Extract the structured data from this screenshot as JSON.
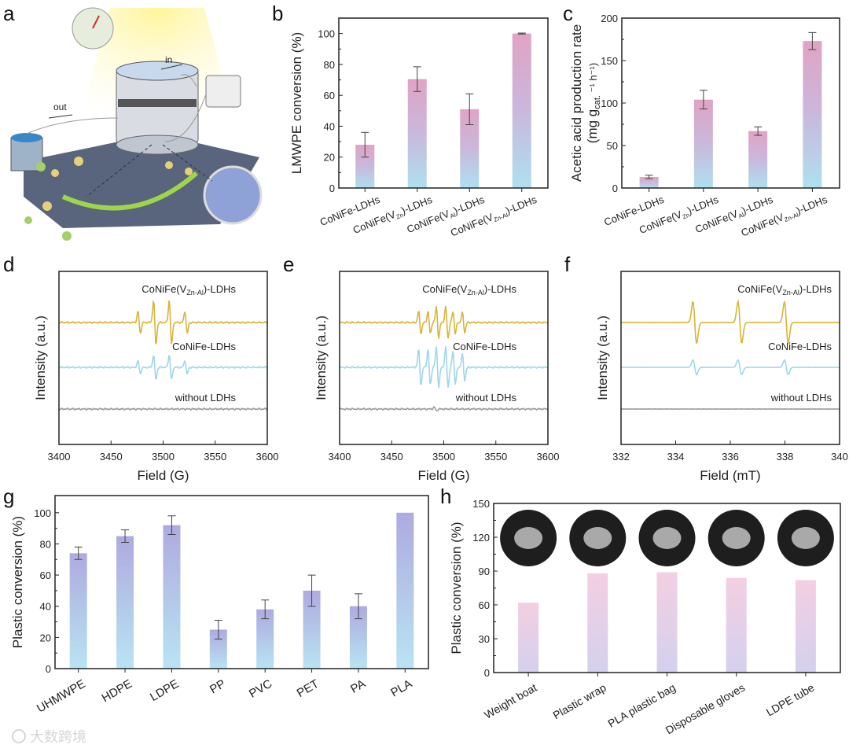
{
  "panel_labels": [
    "a",
    "b",
    "c",
    "d",
    "e",
    "f",
    "g",
    "h"
  ],
  "panel_a": {
    "in_label": "in",
    "out_label": "out"
  },
  "watermark": "大数跨境",
  "colors": {
    "pink": "#e3a6c6",
    "blue": "#aee0f0",
    "lavender": "#b7b6e6",
    "gold": "#d8b43a",
    "cyan": "#9fd6e8",
    "gray": "#9a9a9a"
  },
  "chart_data": [
    {
      "id": "b",
      "type": "bar",
      "title": "",
      "ylabel": "LMWPE conversion  (%)",
      "xlabel": "",
      "categories": [
        "CoNiFe-LDHs",
        "CoNiFe(V₂ₙ)-LDHs",
        "CoNiFe(Vₐₗ)-LDHs",
        "CoNiFe(V₂ₙ₋ₐₗ)-LDHs"
      ],
      "category_labels": [
        [
          "CoNiFe-LDHs"
        ],
        [
          "CoNiFe(V",
          "Zn",
          ")-LDHs"
        ],
        [
          "CoNiFe(V",
          "Al",
          ")-LDHs"
        ],
        [
          "CoNiFe(V",
          "Zn-Al",
          ")-LDHs"
        ]
      ],
      "values": [
        28,
        70.5,
        51,
        100
      ],
      "errors": [
        8,
        8,
        10,
        0.3
      ],
      "ylim": [
        0,
        110
      ],
      "yticks": [
        0,
        20,
        40,
        60,
        80,
        100
      ],
      "gradient": "pink-blue"
    },
    {
      "id": "c",
      "type": "bar",
      "ylabel": "Acetic acid production rate",
      "ylabel2": "(mg g",
      "ylabel2_sub": "cat.",
      "ylabel2_rest": "⁻¹ h⁻¹)",
      "category_labels": [
        [
          "CoNiFe-LDHs"
        ],
        [
          "CoNiFe(V",
          "Zn",
          ")-LDHs"
        ],
        [
          "CoNiFe(V",
          "Al",
          ")-LDHs"
        ],
        [
          "CoNiFe(V",
          "Zn-Al",
          ")-LDHs"
        ]
      ],
      "values": [
        13,
        104,
        67,
        173
      ],
      "errors": [
        2,
        11,
        5,
        10
      ],
      "ylim": [
        0,
        200
      ],
      "yticks": [
        0,
        50,
        100,
        150,
        200
      ],
      "gradient": "pink-blue"
    },
    {
      "id": "d",
      "type": "line",
      "xlabel": "Field (G)",
      "ylabel": "Intensity (a.u.)",
      "xlim": [
        3400,
        3600
      ],
      "xticks": [
        3400,
        3450,
        3500,
        3550,
        3600
      ],
      "series": [
        {
          "name": "CoNiFe(V",
          "sub": "Zn-Al",
          "rest": ")-LDHs",
          "color": "gold",
          "peaks": [
            3477,
            3492,
            3507,
            3522
          ],
          "amp": [
            0.5,
            1,
            1,
            0.5
          ]
        },
        {
          "name": "CoNiFe-LDHs",
          "color": "cyan",
          "peaks": [
            3477,
            3492,
            3507,
            3522
          ],
          "amp": [
            0.3,
            0.55,
            0.55,
            0.3
          ]
        },
        {
          "name": "without LDHs",
          "color": "gray",
          "peaks": [],
          "amp": []
        }
      ]
    },
    {
      "id": "e",
      "type": "line",
      "xlabel": "Field (G)",
      "ylabel": "Intensity (a.u.)",
      "xlim": [
        3400,
        3600
      ],
      "xticks": [
        3400,
        3450,
        3500,
        3550,
        3600
      ],
      "series": [
        {
          "name": "CoNiFe(V",
          "sub": "Zn-Al",
          "rest": ")-LDHs",
          "color": "gold",
          "peaks": [
            3477,
            3486,
            3494,
            3503,
            3510,
            3519
          ],
          "amp": [
            0.5,
            0.5,
            0.7,
            0.7,
            0.5,
            0.45
          ]
        },
        {
          "name": "CoNiFe-LDHs",
          "color": "cyan",
          "peaks": [
            3477,
            3486,
            3494,
            3503,
            3510,
            3519
          ],
          "amp": [
            0.8,
            0.8,
            0.9,
            0.9,
            0.75,
            0.6
          ]
        },
        {
          "name": "without LDHs",
          "color": "gray",
          "peaks": [
            3492
          ],
          "amp": [
            0.08
          ]
        }
      ]
    },
    {
      "id": "f",
      "type": "line",
      "xlabel": "Field (mT)",
      "ylabel": "Intensity (a.u.)",
      "xlim": [
        332,
        340
      ],
      "xticks": [
        332,
        334,
        336,
        338,
        340
      ],
      "series": [
        {
          "name": "CoNiFe(V",
          "sub": "Zn-Al",
          "rest": ")-LDHs",
          "color": "gold",
          "peaks": [
            334.7,
            336.35,
            338.05
          ],
          "amp": [
            1,
            1,
            1
          ]
        },
        {
          "name": "CoNiFe-LDHs",
          "color": "cyan",
          "peaks": [
            334.7,
            336.35,
            338.05
          ],
          "amp": [
            0.35,
            0.35,
            0.35
          ]
        },
        {
          "name": "without LDHs",
          "color": "gray",
          "peaks": [],
          "amp": []
        }
      ]
    },
    {
      "id": "g",
      "type": "bar",
      "ylabel": "Plastic conversion  (%)",
      "categories": [
        "UHMWPE",
        "HDPE",
        "LDPE",
        "PP",
        "PVC",
        "PET",
        "PA",
        "PLA"
      ],
      "values": [
        74,
        85,
        92,
        25,
        38,
        50,
        40,
        100
      ],
      "errors": [
        4,
        4,
        6,
        6,
        6,
        10,
        8,
        0
      ],
      "ylim": [
        0,
        111
      ],
      "yticks": [
        0,
        20,
        40,
        60,
        80,
        100
      ],
      "gradient": "lavender-blue"
    },
    {
      "id": "h",
      "type": "bar",
      "ylabel": "Plastic conversion  (%)",
      "categories": [
        "Weight boat",
        "Plastic wrap",
        "PLA plastic bag",
        "Disposable gloves",
        "LDPE tube"
      ],
      "values": [
        62,
        88,
        89,
        84,
        82
      ],
      "ylim": [
        0,
        150
      ],
      "yticks": [
        0,
        30,
        60,
        90,
        120,
        150
      ],
      "gradient": "pink-lavender"
    }
  ]
}
